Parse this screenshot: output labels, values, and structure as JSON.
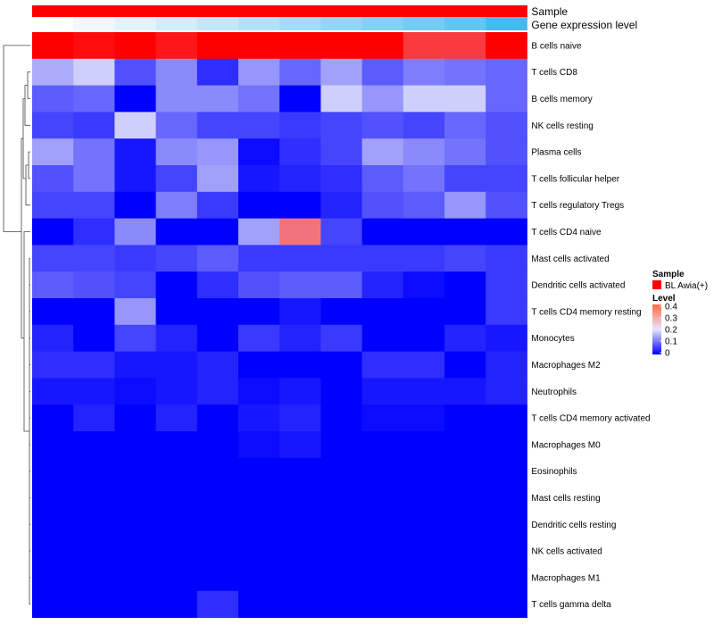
{
  "chart_data": {
    "type": "heatmap",
    "title": "",
    "xlabel": "",
    "ylabel": "",
    "annotation_tracks": [
      {
        "name": "Sample",
        "colors": [
          "#ff0000",
          "#ff0000",
          "#ff0000",
          "#ff0000",
          "#ff0000",
          "#ff0000",
          "#ff0000",
          "#ff0000",
          "#ff0000",
          "#ff0000",
          "#ff0000",
          "#ff0000"
        ]
      },
      {
        "name": "Gene expression level",
        "values": [
          0.0,
          0.05,
          0.1,
          0.15,
          0.2,
          0.25,
          0.3,
          0.35,
          0.4,
          0.45,
          0.5,
          0.6
        ]
      }
    ],
    "rows": [
      "B cells naive",
      "T cells CD8",
      "B cells memory",
      "NK cells resting",
      "Plasma cells",
      "T cells follicular helper",
      "T cells regulatory  Tregs",
      "T cells CD4 naive",
      "Mast cells activated",
      "Dendritic cells activated",
      "T cells CD4 memory resting",
      "Monocytes",
      "Macrophages M2",
      "Neutrophils",
      "T cells CD4 memory activated",
      "Macrophages M0",
      "Eosinophils",
      "Mast cells resting",
      "Dendritic cells resting",
      "NK cells activated",
      "Macrophages M1",
      "T cells gamma delta"
    ],
    "values": [
      [
        0.45,
        0.39,
        0.47,
        0.38,
        0.43,
        0.47,
        0.46,
        0.44,
        0.44,
        0.35,
        0.35,
        0.47
      ],
      [
        0.15,
        0.18,
        0.07,
        0.12,
        0.04,
        0.13,
        0.09,
        0.14,
        0.08,
        0.11,
        0.1,
        0.09
      ],
      [
        0.08,
        0.09,
        0.0,
        0.12,
        0.12,
        0.1,
        0.0,
        0.18,
        0.13,
        0.18,
        0.18,
        0.09
      ],
      [
        0.06,
        0.05,
        0.18,
        0.09,
        0.06,
        0.06,
        0.05,
        0.06,
        0.07,
        0.06,
        0.09,
        0.07
      ],
      [
        0.14,
        0.1,
        0.02,
        0.12,
        0.13,
        0.01,
        0.04,
        0.06,
        0.14,
        0.12,
        0.1,
        0.07
      ],
      [
        0.07,
        0.1,
        0.02,
        0.06,
        0.14,
        0.02,
        0.03,
        0.04,
        0.08,
        0.1,
        0.06,
        0.06
      ],
      [
        0.06,
        0.06,
        0.0,
        0.11,
        0.05,
        0.0,
        0.0,
        0.03,
        0.07,
        0.08,
        0.13,
        0.07
      ],
      [
        0.0,
        0.04,
        0.12,
        0.0,
        0.0,
        0.14,
        0.3,
        0.06,
        0.0,
        0.0,
        0.0,
        0.0
      ],
      [
        0.06,
        0.06,
        0.05,
        0.06,
        0.08,
        0.05,
        0.05,
        0.05,
        0.05,
        0.05,
        0.06,
        0.05
      ],
      [
        0.08,
        0.07,
        0.06,
        0.0,
        0.04,
        0.07,
        0.08,
        0.08,
        0.03,
        0.01,
        0.0,
        0.05
      ],
      [
        0.0,
        0.0,
        0.13,
        0.0,
        0.0,
        0.0,
        0.02,
        0.0,
        0.0,
        0.0,
        0.0,
        0.05
      ],
      [
        0.03,
        0.0,
        0.06,
        0.03,
        0.0,
        0.05,
        0.03,
        0.05,
        0.0,
        0.0,
        0.03,
        0.02
      ],
      [
        0.04,
        0.04,
        0.02,
        0.02,
        0.03,
        0.0,
        0.0,
        0.0,
        0.04,
        0.04,
        0.0,
        0.03
      ],
      [
        0.02,
        0.02,
        0.01,
        0.02,
        0.03,
        0.01,
        0.02,
        0.0,
        0.02,
        0.02,
        0.02,
        0.03
      ],
      [
        0.0,
        0.03,
        0.0,
        0.03,
        0.0,
        0.02,
        0.03,
        0.0,
        0.01,
        0.01,
        0.0,
        0.0
      ],
      [
        0.0,
        0.0,
        0.0,
        0.0,
        0.0,
        0.01,
        0.02,
        0.0,
        0.0,
        0.0,
        0.0,
        0.0
      ],
      [
        0.0,
        0.0,
        0.0,
        0.0,
        0.0,
        0.0,
        0.0,
        0.0,
        0.0,
        0.0,
        0.0,
        0.0
      ],
      [
        0.0,
        0.0,
        0.0,
        0.0,
        0.0,
        0.0,
        0.0,
        0.0,
        0.0,
        0.0,
        0.0,
        0.0
      ],
      [
        0.0,
        0.0,
        0.0,
        0.0,
        0.0,
        0.0,
        0.0,
        0.0,
        0.0,
        0.0,
        0.0,
        0.0
      ],
      [
        0.0,
        0.0,
        0.0,
        0.0,
        0.0,
        0.0,
        0.0,
        0.0,
        0.0,
        0.0,
        0.0,
        0.0
      ],
      [
        0.0,
        0.0,
        0.0,
        0.0,
        0.0,
        0.0,
        0.0,
        0.0,
        0.0,
        0.0,
        0.0,
        0.0
      ],
      [
        0.0,
        0.0,
        0.0,
        0.0,
        0.04,
        0.0,
        0.0,
        0.0,
        0.0,
        0.0,
        0.0,
        0.0
      ]
    ],
    "color_scale": {
      "stops": [
        {
          "value": 0.0,
          "color": "#0000ff"
        },
        {
          "value": 0.2,
          "color": "#e6e6fa"
        },
        {
          "value": 0.4,
          "color": "#ff0000"
        }
      ]
    },
    "legend": {
      "placement": "right",
      "sample_title": "Sample",
      "sample_entry_label": "BL Awia(+)",
      "sample_entry_color": "#ff0000",
      "level_title": "Level",
      "level_ticks": [
        {
          "value": 0.0,
          "label": "0"
        },
        {
          "value": 0.1,
          "label": "0.1"
        },
        {
          "value": 0.2,
          "label": "0.2"
        },
        {
          "value": 0.3,
          "label": "0.3"
        },
        {
          "value": 0.4,
          "label": "0.4"
        }
      ]
    },
    "gene_track_colors": {
      "low": "#ffffff",
      "high": "#44bbee"
    }
  }
}
